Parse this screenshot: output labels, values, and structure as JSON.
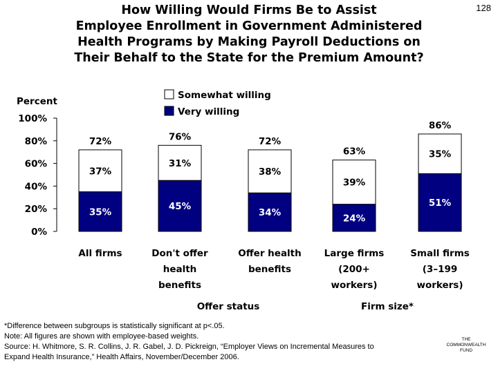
{
  "slide_number": "128",
  "title_lines": [
    "How Willing Would Firms Be to Assist",
    "Employee Enrollment in Government Administered",
    "Health Programs by Making Payroll Deductions on",
    "Their Behalf to the State for the Premium Amount?"
  ],
  "chart_data": {
    "type": "bar",
    "stacked": true,
    "ylabel": "Percent",
    "ylim": [
      0,
      100
    ],
    "yticks": [
      "0%",
      "20%",
      "40%",
      "60%",
      "80%",
      "100%"
    ],
    "categories": [
      [
        "All firms"
      ],
      [
        "Don't offer",
        "health",
        "benefits"
      ],
      [
        "Offer health",
        "benefits"
      ],
      [
        "Large firms",
        "(200+",
        "workers)"
      ],
      [
        "Small firms",
        "(3–199",
        "workers)"
      ]
    ],
    "series": [
      {
        "name": "Very willing",
        "color": "#000080",
        "values": [
          35,
          45,
          34,
          24,
          51
        ],
        "labels": [
          "35%",
          "45%",
          "34%",
          "24%",
          "51%"
        ]
      },
      {
        "name": "Somewhat willing",
        "color": "#ffffff",
        "values": [
          37,
          31,
          38,
          39,
          35
        ],
        "labels": [
          "37%",
          "31%",
          "38%",
          "39%",
          "35%"
        ]
      }
    ],
    "totals": [
      "72%",
      "76%",
      "72%",
      "63%",
      "86%"
    ],
    "legend_position": "top",
    "group_labels": [
      "Offer status",
      "Firm size*"
    ]
  },
  "footnotes": [
    "*Difference between subgroups is statistically significant at p<.05.",
    "Note: All figures are shown with employee-based weights.",
    "Source: H. Whitmore, S. R. Collins, J. R. Gabel, J. D. Pickreign, “Employer Views on Incremental Measures to",
    "Expand Health Insurance,” Health Affairs, November/December 2006."
  ],
  "logo_lines": [
    "THE",
    "COMMONWEALTH",
    "FUND"
  ]
}
